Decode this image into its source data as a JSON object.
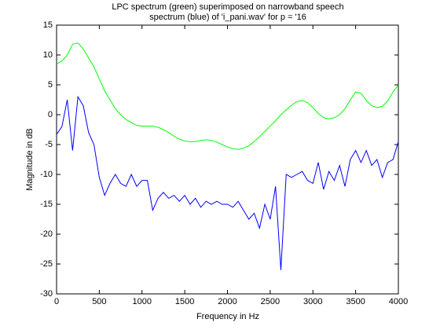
{
  "chart_data": {
    "type": "line",
    "title": [
      "LPC spectrum (green) superimposed on narrowband speech",
      "spectrum (blue) of 'i_pani.wav' for p = '16"
    ],
    "xlabel": "Frequency in Hz",
    "ylabel": "Magnitude in dB",
    "x": [
      0,
      62.5,
      125,
      187.5,
      250,
      312.5,
      375,
      437.5,
      500,
      562.5,
      625,
      687.5,
      750,
      812.5,
      875,
      937.5,
      1000,
      1062.5,
      1125,
      1187.5,
      1250,
      1312.5,
      1375,
      1437.5,
      1500,
      1562.5,
      1625,
      1687.5,
      1750,
      1812.5,
      1875,
      1937.5,
      2000,
      2062.5,
      2125,
      2187.5,
      2250,
      2312.5,
      2375,
      2437.5,
      2500,
      2562.5,
      2625,
      2687.5,
      2750,
      2812.5,
      2875,
      2937.5,
      3000,
      3062.5,
      3125,
      3187.5,
      3250,
      3312.5,
      3375,
      3437.5,
      3500,
      3562.5,
      3625,
      3687.5,
      3750,
      3812.5,
      3875,
      3937.5,
      4000
    ],
    "series": [
      {
        "color": "#00ff00",
        "values": [
          8.5,
          9,
          10,
          11.8,
          12,
          11,
          9.5,
          8,
          6,
          4,
          2.5,
          1,
          0,
          -0.8,
          -1.3,
          -1.8,
          -1.9,
          -1.9,
          -1.9,
          -2.1,
          -2.5,
          -3,
          -3.6,
          -4.1,
          -4.4,
          -4.5,
          -4.5,
          -4.3,
          -4.2,
          -4.3,
          -4.6,
          -5,
          -5.4,
          -5.7,
          -5.8,
          -5.6,
          -5.2,
          -4.5,
          -3.7,
          -2.8,
          -1.9,
          -1,
          0,
          0.8,
          1.6,
          2.2,
          2.4,
          2,
          1.2,
          0.2,
          -0.5,
          -0.7,
          -0.5,
          0,
          1,
          2.5,
          3.8,
          3.6,
          2.4,
          1.5,
          1.2,
          1.4,
          2.3,
          3.8,
          5
        ]
      },
      {
        "color": "#0000ff",
        "values": [
          -3.3,
          -2,
          2.5,
          -6,
          3,
          1.5,
          -3,
          -5,
          -10.5,
          -13.5,
          -11.5,
          -10,
          -11.5,
          -12,
          -10,
          -12,
          -11,
          -11,
          -16,
          -14,
          -13,
          -14,
          -13.5,
          -14.5,
          -13.5,
          -15,
          -14,
          -15.5,
          -14.5,
          -15,
          -14.5,
          -15,
          -15,
          -15.5,
          -14.5,
          -16,
          -17.5,
          -16.5,
          -19,
          -15,
          -17.5,
          -12,
          -26,
          -10,
          -10.5,
          -10,
          -9.5,
          -11,
          -11.5,
          -8,
          -12.5,
          -9.5,
          -11,
          -8.5,
          -12,
          -7.5,
          -6,
          -8,
          -6,
          -8.5,
          -7.5,
          -10.5,
          -8,
          -7.5,
          -4.5
        ]
      }
    ],
    "xlim": [
      0,
      4000
    ],
    "xticks": [
      0,
      500,
      1000,
      1500,
      2000,
      2500,
      3000,
      3500,
      4000
    ],
    "ylim": [
      -30,
      15
    ],
    "yticks": [
      -30,
      -25,
      -20,
      -15,
      -10,
      -5,
      0,
      5,
      10,
      15
    ]
  }
}
